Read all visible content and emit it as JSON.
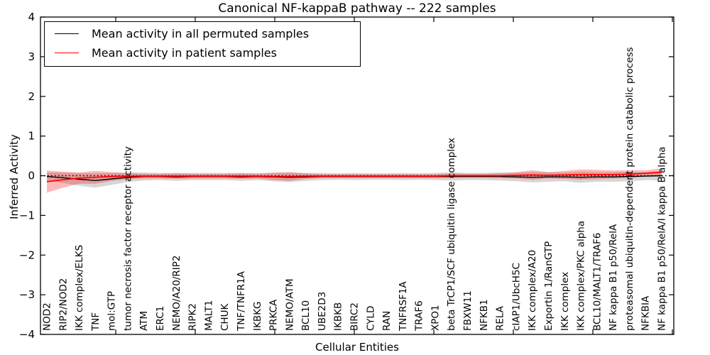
{
  "chart_data": {
    "type": "line",
    "title": "Canonical NF-kappaB pathway -- 222 samples",
    "xlabel": "Cellular Entities",
    "ylabel": "Inferred Activity",
    "ylim": [
      -4,
      4
    ],
    "yticks": [
      -4,
      -3,
      -2,
      -1,
      0,
      1,
      2,
      3,
      4
    ],
    "grid": false,
    "legend_position": "upper left",
    "zero_reference_line": true,
    "categories": [
      "NOD2",
      "RIP2/NOD2",
      "IKK complex/ELKS",
      "TNF",
      "mol:GTP",
      "tumor necrosis factor receptor activity",
      "ATM",
      "ERC1",
      "NEMO/A20/RIP2",
      "RIPK2",
      "MALT1",
      "CHUK",
      "TNF/TNFR1A",
      "IKBKG",
      "PRKCA",
      "NEMO/ATM",
      "BCL10",
      "UBE2D3",
      "IKBKB",
      "BIRC2",
      "CYLD",
      "RAN",
      "TNFRSF1A",
      "TRAF6",
      "XPO1",
      "beta TrCP1/SCF ubiquitin ligase complex",
      "FBXW11",
      "NFKB1",
      "RELA",
      "cIAP1/UbcH5C",
      "IKK complex/A20",
      "Exportin 1/RanGTP",
      "IKK complex",
      "IKK complex/PKC alpha",
      "BCL10/MALT1/TRAF6",
      "NF kappa B1 p50/RelA",
      "proteasomal ubiquitin-dependent protein catabolic process",
      "NFKBIA",
      "NF kappa B1 p50/RelA/I kappa B alpha"
    ],
    "series": [
      {
        "name": "Mean activity in all permuted samples",
        "color": "#000000",
        "band_color": "rgba(0,0,0,0.16)",
        "values": [
          -0.02,
          -0.05,
          -0.09,
          -0.12,
          -0.08,
          -0.04,
          -0.02,
          -0.02,
          -0.03,
          -0.02,
          -0.02,
          -0.02,
          -0.03,
          -0.02,
          -0.03,
          -0.04,
          -0.03,
          -0.02,
          -0.02,
          -0.02,
          -0.02,
          -0.02,
          -0.02,
          -0.02,
          -0.02,
          -0.02,
          -0.02,
          -0.02,
          -0.02,
          -0.03,
          -0.04,
          -0.03,
          -0.03,
          -0.04,
          -0.03,
          -0.03,
          -0.02,
          -0.01,
          0.0
        ],
        "band_halfwidth": [
          0.1,
          0.13,
          0.16,
          0.18,
          0.15,
          0.12,
          0.1,
          0.09,
          0.1,
          0.09,
          0.09,
          0.09,
          0.1,
          0.09,
          0.11,
          0.12,
          0.1,
          0.09,
          0.08,
          0.09,
          0.08,
          0.08,
          0.09,
          0.08,
          0.09,
          0.1,
          0.09,
          0.09,
          0.1,
          0.11,
          0.13,
          0.12,
          0.11,
          0.14,
          0.12,
          0.12,
          0.12,
          0.1,
          0.12
        ]
      },
      {
        "name": "Mean activity in patient samples",
        "color": "#ff0000",
        "band_color": "rgba(255,0,0,0.28)",
        "values": [
          -0.15,
          -0.1,
          -0.06,
          -0.04,
          -0.02,
          -0.01,
          -0.01,
          -0.01,
          -0.01,
          -0.01,
          -0.01,
          -0.01,
          -0.01,
          -0.01,
          -0.02,
          -0.02,
          -0.01,
          -0.01,
          -0.01,
          -0.01,
          -0.01,
          -0.01,
          -0.01,
          -0.01,
          -0.01,
          0.0,
          0.0,
          0.0,
          0.0,
          0.01,
          0.02,
          0.01,
          0.02,
          0.03,
          0.03,
          0.03,
          0.04,
          0.06,
          0.09
        ],
        "band_halfwidth": [
          0.28,
          0.2,
          0.14,
          0.16,
          0.11,
          0.08,
          0.06,
          0.06,
          0.07,
          0.06,
          0.06,
          0.06,
          0.07,
          0.06,
          0.09,
          0.11,
          0.07,
          0.05,
          0.05,
          0.05,
          0.05,
          0.05,
          0.05,
          0.05,
          0.05,
          0.06,
          0.05,
          0.05,
          0.06,
          0.08,
          0.12,
          0.08,
          0.1,
          0.13,
          0.12,
          0.1,
          0.1,
          0.08,
          0.09
        ]
      }
    ]
  }
}
